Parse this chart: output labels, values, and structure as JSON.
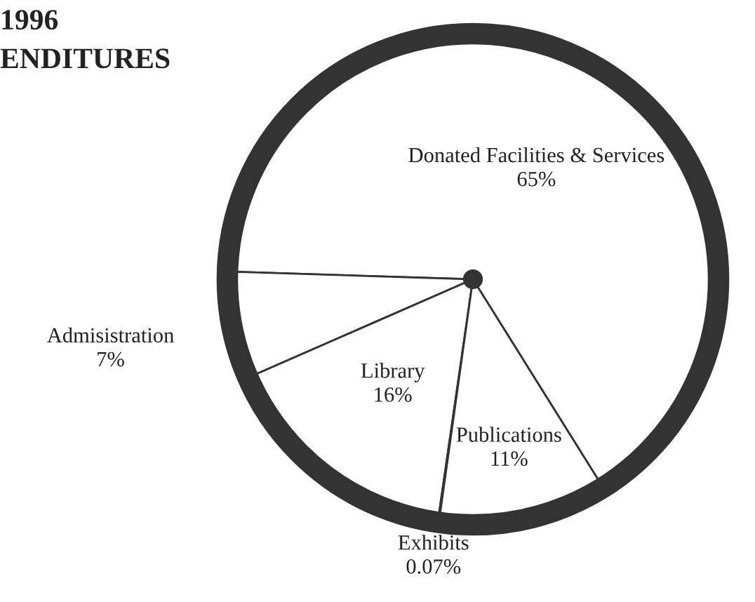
{
  "chart_data": {
    "type": "pie",
    "title": "1996\nENDITURES",
    "categories": [
      "Donated Facilities & Services",
      "Admisistration",
      "Library",
      "Exhibits",
      "Publications"
    ],
    "values": [
      65,
      7,
      16,
      0.07,
      11
    ],
    "colors": [
      "#ffffff",
      "#ffffff",
      "#ffffff",
      "#ffffff",
      "#ffffff"
    ],
    "value_labels": [
      "65%",
      "7%",
      "16%",
      "0.07%",
      "11%"
    ]
  }
}
